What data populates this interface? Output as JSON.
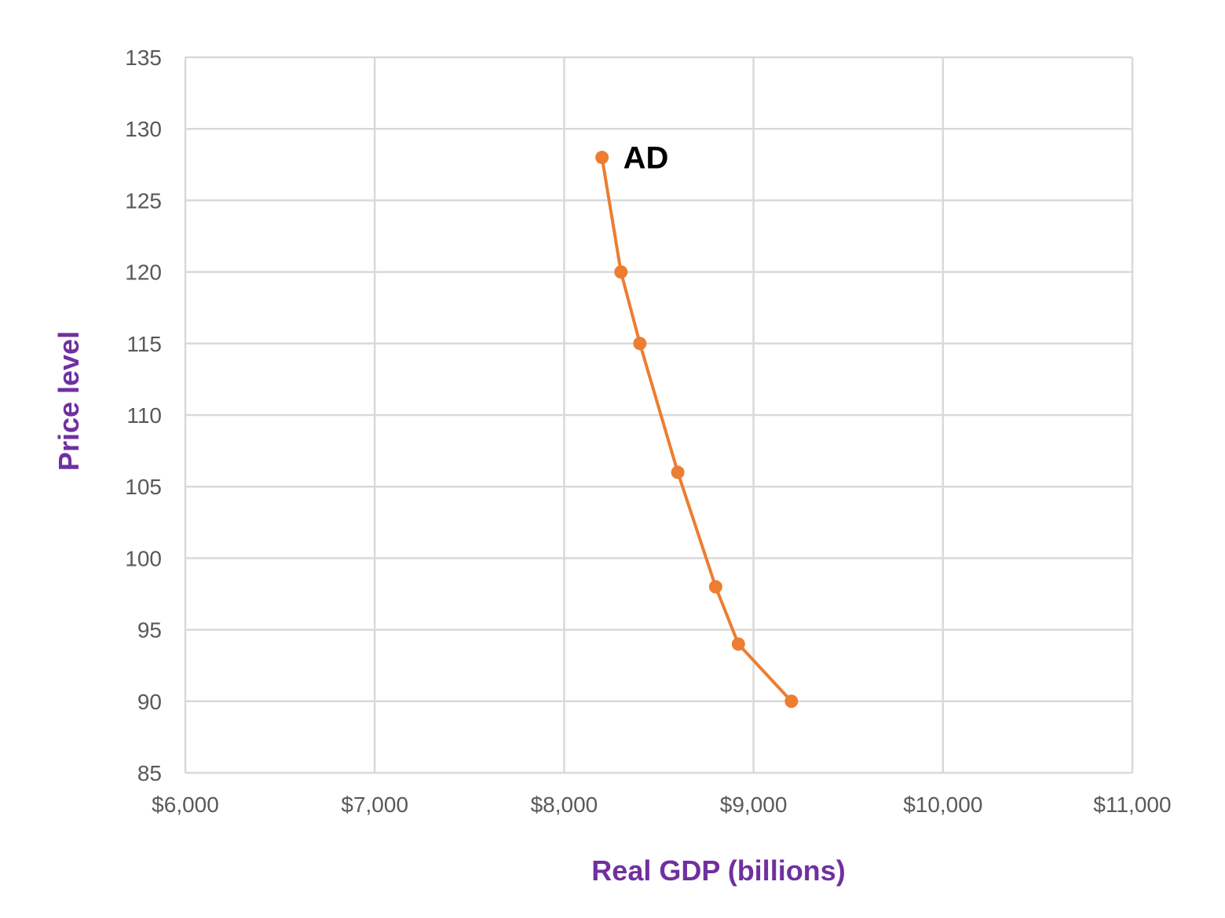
{
  "chart_data": {
    "type": "line",
    "xlabel": "Real GDP (billions)",
    "ylabel": "Price level",
    "xlim": [
      6000,
      11000
    ],
    "ylim": [
      85,
      135
    ],
    "x_ticks": [
      6000,
      7000,
      8000,
      9000,
      10000,
      11000
    ],
    "x_tick_labels": [
      "$6,000",
      "$7,000",
      "$8,000",
      "$9,000",
      "$10,000",
      "$11,000"
    ],
    "y_ticks": [
      85,
      90,
      95,
      100,
      105,
      110,
      115,
      120,
      125,
      130,
      135
    ],
    "y_tick_labels": [
      "85",
      "90",
      "95",
      "100",
      "105",
      "110",
      "115",
      "120",
      "125",
      "130",
      "135"
    ],
    "grid": true,
    "series": [
      {
        "name": "AD",
        "color": "#ED7D31",
        "marker": "circle",
        "x": [
          8200,
          8300,
          8400,
          8600,
          8800,
          8920,
          9200
        ],
        "y": [
          128,
          120,
          115,
          106,
          98,
          94,
          90
        ]
      }
    ],
    "annotations": [
      {
        "text": "AD",
        "series": 0,
        "point": 0
      }
    ],
    "colors": {
      "axis_title": "#7030A0",
      "tick_label": "#595959",
      "grid": "#D9D9D9",
      "series": "#ED7D31"
    }
  }
}
